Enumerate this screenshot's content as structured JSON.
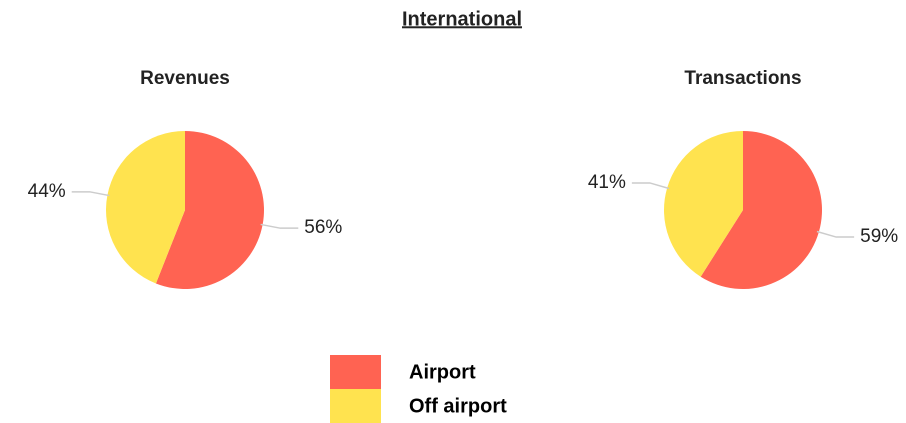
{
  "title": "International",
  "chart_data": [
    {
      "type": "pie",
      "title": "Revenues",
      "categories": [
        "Airport",
        "Off airport"
      ],
      "values": [
        56,
        44
      ],
      "value_labels": [
        "56%",
        "44%"
      ],
      "colors": [
        "#ff6352",
        "#ffe34f"
      ]
    },
    {
      "type": "pie",
      "title": "Transactions",
      "categories": [
        "Airport",
        "Off airport"
      ],
      "values": [
        59,
        41
      ],
      "value_labels": [
        "59%",
        "41%"
      ],
      "colors": [
        "#ff6352",
        "#ffe34f"
      ]
    }
  ]
}
